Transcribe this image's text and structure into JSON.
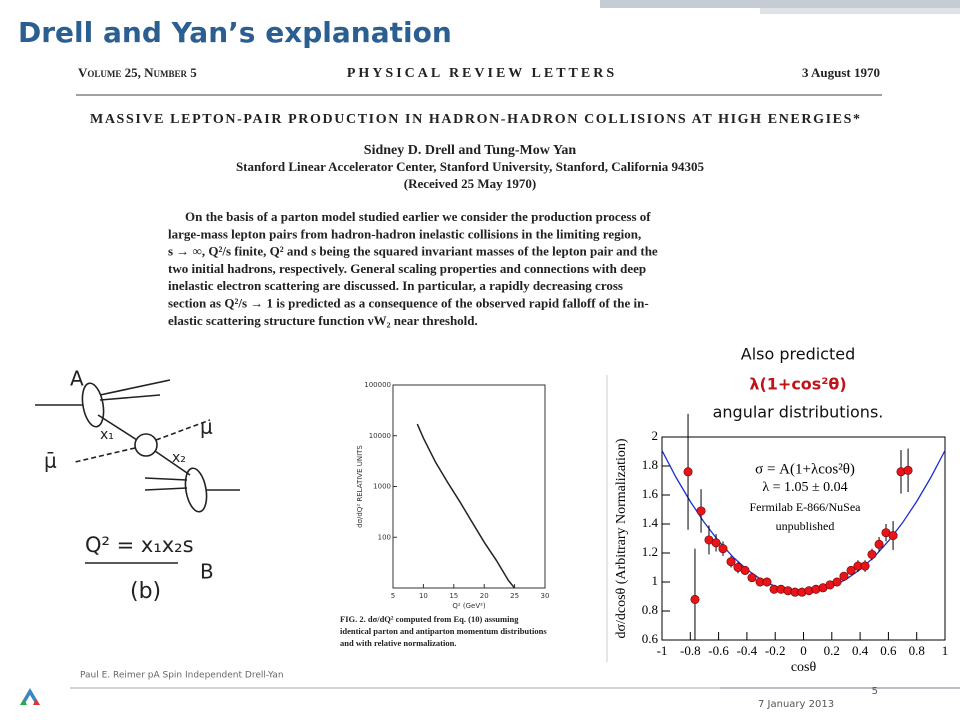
{
  "header": {
    "title": "Drell and Yan’s explanation"
  },
  "paper": {
    "volume": "Volume 25, Number 5",
    "journal": "PHYSICAL REVIEW LETTERS",
    "date": "3 August 1970",
    "title": "MASSIVE LEPTON-PAIR PRODUCTION IN HADRON-HADRON COLLISIONS AT HIGH ENERGIES*",
    "authors": "Sidney D. Drell and Tung-Mow Yan",
    "affiliation": "Stanford Linear Accelerator Center, Stanford University, Stanford, California 94305",
    "received": "(Received 25 May 1970)",
    "abstract": [
      "On the basis of a parton model studied earlier we consider the production process of",
      "large-mass lepton pairs from hadron-hadron inelastic collisions in the limiting region,",
      "s → ∞, Q²/s finite, Q² and s being the squared invariant masses of the lepton pair and the",
      "two initial hadrons, respectively. General scaling properties and connections with deep",
      "inelastic electron scattering are discussed. In particular, a rapidly decreasing cross",
      "section as Q²/s → 1 is predicted as a consequence of the observed rapid falloff of the in-",
      "elastic scattering structure function νW₂ near threshold."
    ]
  },
  "diagram": {
    "labels": {
      "a": "A",
      "b": "B",
      "x1": "x₁",
      "x2": "x₂",
      "mu": "μ",
      "mubar": "μ̄"
    },
    "formula": "Q² = x₁x₂s",
    "caption": "(b)"
  },
  "figure2": {
    "type": "line",
    "ylabel": "dσ/dQ² RELATIVE UNITS",
    "xlabel": "Q² (GeV²)",
    "log_y": true,
    "xlim": [
      5,
      30
    ],
    "ylim": [
      10,
      100000
    ],
    "xticks": [
      5,
      10,
      15,
      20,
      25,
      30
    ],
    "yticks": [
      100,
      1000,
      10000,
      100000
    ],
    "x": [
      9,
      10,
      12,
      14,
      16,
      18,
      20,
      22,
      24,
      25
    ],
    "y": [
      17000,
      9000,
      3000,
      1200,
      500,
      200,
      80,
      35,
      14,
      10
    ],
    "caption": [
      "FIG. 2. dσ/dQ² computed from Eq. (10) assuming",
      "identical parton and antiparton momentum distributions",
      "and with relative normalization."
    ]
  },
  "annotation": [
    "Also predicted",
    "λ(1+cos²θ)",
    "angular distributions."
  ],
  "angular_plot": {
    "type": "scatter",
    "ylabel": "dσ/dcosθ (Arbitrary Normalization)",
    "xlabel": "cosθ",
    "xlim": [
      -1,
      1
    ],
    "ylim": [
      0.6,
      2
    ],
    "xticks": [
      -1,
      -0.8,
      -0.6,
      -0.4,
      -0.2,
      0,
      0.2,
      0.4,
      0.6,
      0.8,
      1
    ],
    "yticks": [
      0.6,
      0.8,
      1,
      1.2,
      1.4,
      1.6,
      1.8,
      2
    ],
    "legend": [
      "σ = A(1+λcos²θ)",
      "λ = 1.05 ± 0.04",
      "Fermilab E-866/NuSea",
      "unpublished"
    ],
    "color": "#e8141a",
    "fit_color": "#1a2fd0",
    "x": [
      -0.816,
      -0.767,
      -0.724,
      -0.668,
      -0.618,
      -0.569,
      -0.512,
      -0.463,
      -0.413,
      -0.364,
      -0.307,
      -0.258,
      -0.208,
      -0.159,
      -0.11,
      -0.06,
      -0.011,
      0.039,
      0.088,
      0.138,
      0.187,
      0.237,
      0.286,
      0.336,
      0.385,
      0.435,
      0.484,
      0.534,
      0.583,
      0.633,
      0.689,
      0.739
    ],
    "values": [
      1.76,
      0.88,
      1.49,
      1.29,
      1.27,
      1.23,
      1.14,
      1.1,
      1.08,
      1.03,
      1.0,
      1.0,
      0.95,
      0.95,
      0.94,
      0.93,
      0.93,
      0.94,
      0.95,
      0.96,
      0.98,
      1.0,
      1.04,
      1.08,
      1.11,
      1.11,
      1.19,
      1.26,
      1.34,
      1.32,
      1.76,
      1.77
    ],
    "errors": [
      0.4,
      0.35,
      0.15,
      0.1,
      0.06,
      0.05,
      0.04,
      0.04,
      0.03,
      0.03,
      0.03,
      0.03,
      0.03,
      0.03,
      0.03,
      0.03,
      0.03,
      0.03,
      0.03,
      0.03,
      0.03,
      0.03,
      0.03,
      0.03,
      0.04,
      0.04,
      0.04,
      0.05,
      0.06,
      0.1,
      0.15,
      0.15
    ],
    "fit_x": [
      -1,
      -0.9,
      -0.8,
      -0.7,
      -0.6,
      -0.5,
      -0.4,
      -0.3,
      -0.2,
      -0.1,
      0,
      0.1,
      0.2,
      0.3,
      0.4,
      0.5,
      0.6,
      0.7,
      0.8,
      0.9,
      1
    ],
    "fit_y": [
      1.907,
      1.721,
      1.555,
      1.408,
      1.282,
      1.174,
      1.086,
      1.018,
      0.969,
      0.94,
      0.93,
      0.94,
      0.969,
      1.018,
      1.086,
      1.174,
      1.282,
      1.408,
      1.555,
      1.721,
      1.907
    ]
  },
  "footer": {
    "presenter": "Paul E. Reimer pA Spin Independent Drell-Yan",
    "date": "7 January 2013",
    "page": 5
  }
}
